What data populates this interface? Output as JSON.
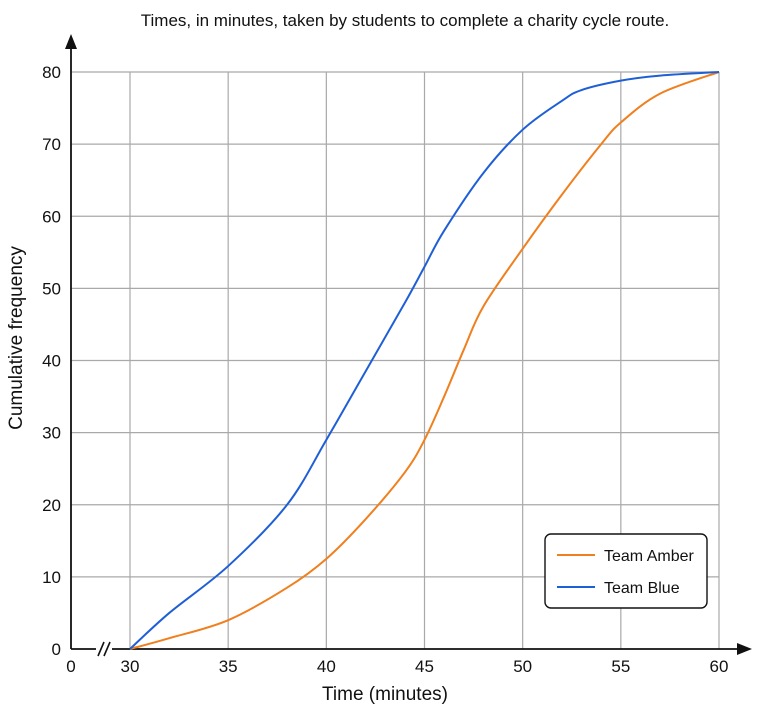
{
  "chart_data": {
    "type": "line",
    "title": "Times, in minutes, taken by  students to complete a charity cycle route.",
    "xlabel": "Time (minutes)",
    "ylabel": "Cumulative frequency",
    "xlim": [
      30,
      60
    ],
    "ylim": [
      0,
      80
    ],
    "x_axis_break": true,
    "x_origin_label": "0",
    "x_ticks": [
      30,
      35,
      40,
      45,
      50,
      55,
      60
    ],
    "y_ticks": [
      0,
      10,
      20,
      30,
      40,
      50,
      60,
      70,
      80
    ],
    "grid": true,
    "legend_position": "bottom-right",
    "series": [
      {
        "name": "Team Amber",
        "color": "#f07f1e",
        "points": [
          [
            30,
            0
          ],
          [
            32,
            1.5
          ],
          [
            35,
            4
          ],
          [
            38,
            8.5
          ],
          [
            40,
            12.5
          ],
          [
            42,
            18
          ],
          [
            44,
            24.5
          ],
          [
            45,
            29
          ],
          [
            46,
            35
          ],
          [
            47,
            41.5
          ],
          [
            48,
            47.5
          ],
          [
            50,
            55.5
          ],
          [
            52,
            63
          ],
          [
            54,
            70
          ],
          [
            55,
            73
          ],
          [
            57,
            77
          ],
          [
            60,
            80
          ]
        ]
      },
      {
        "name": "Team Blue",
        "color": "#1f5fd6",
        "points": [
          [
            30,
            0
          ],
          [
            32,
            5
          ],
          [
            35,
            11.5
          ],
          [
            38,
            20
          ],
          [
            40,
            29
          ],
          [
            42,
            38.5
          ],
          [
            44,
            48
          ],
          [
            45,
            53
          ],
          [
            46,
            58
          ],
          [
            48,
            66
          ],
          [
            50,
            72
          ],
          [
            52,
            76
          ],
          [
            53,
            77.5
          ],
          [
            55,
            78.8
          ],
          [
            57,
            79.5
          ],
          [
            60,
            80
          ]
        ]
      }
    ]
  }
}
